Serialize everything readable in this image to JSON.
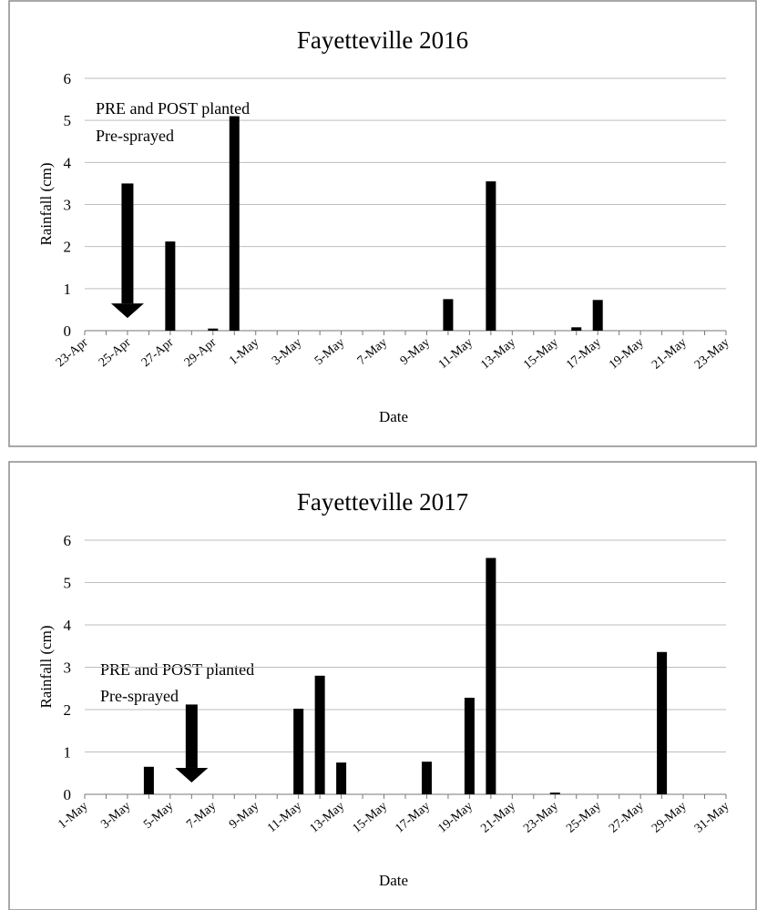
{
  "chart_data": [
    {
      "type": "bar",
      "title": "Fayetteville 2016",
      "xlabel": "Date",
      "ylabel": "Rainfall (cm)",
      "ylim": [
        0,
        6
      ],
      "yticks": [
        "0",
        "1",
        "2",
        "3",
        "4",
        "5",
        "6"
      ],
      "x_start": "23-Apr",
      "x_ticks": [
        "23-Apr",
        "25-Apr",
        "27-Apr",
        "29-Apr",
        "1-May",
        "3-May",
        "5-May",
        "7-May",
        "9-May",
        "11-May",
        "13-May",
        "15-May",
        "17-May",
        "19-May",
        "21-May",
        "23-May"
      ],
      "grid": true,
      "bar_color": "#000000",
      "x": [
        "27-Apr",
        "29-Apr",
        "30-Apr",
        "10-May",
        "12-May",
        "16-May",
        "17-May"
      ],
      "values": [
        2.12,
        0.05,
        5.1,
        0.75,
        3.55,
        0.08,
        0.73
      ],
      "annotation": {
        "lines": [
          "PRE and POST planted",
          "Pre-sprayed"
        ],
        "arrow_from": 3.5,
        "arrow_to": 0.3,
        "arrow_at": "25-Apr"
      }
    },
    {
      "type": "bar",
      "title": "Fayetteville 2017",
      "xlabel": "Date",
      "ylabel": "Rainfall (cm)",
      "ylim": [
        0,
        6
      ],
      "yticks": [
        "0",
        "1",
        "2",
        "3",
        "4",
        "5",
        "6"
      ],
      "x_start": "1-May",
      "x_ticks": [
        "1-May",
        "3-May",
        "5-May",
        "7-May",
        "9-May",
        "11-May",
        "13-May",
        "15-May",
        "17-May",
        "19-May",
        "21-May",
        "23-May",
        "25-May",
        "27-May",
        "29-May",
        "31-May"
      ],
      "grid": true,
      "bar_color": "#000000",
      "x": [
        "4-May",
        "11-May",
        "12-May",
        "13-May",
        "17-May",
        "19-May",
        "20-May",
        "23-May",
        "28-May"
      ],
      "values": [
        0.65,
        2.02,
        2.8,
        0.75,
        0.77,
        2.28,
        5.58,
        0.04,
        3.36
      ],
      "annotation": {
        "lines": [
          "PRE and POST planted",
          "Pre-sprayed"
        ],
        "arrow_from": 2.12,
        "arrow_to": 0.28,
        "arrow_at": "6-May"
      }
    }
  ]
}
